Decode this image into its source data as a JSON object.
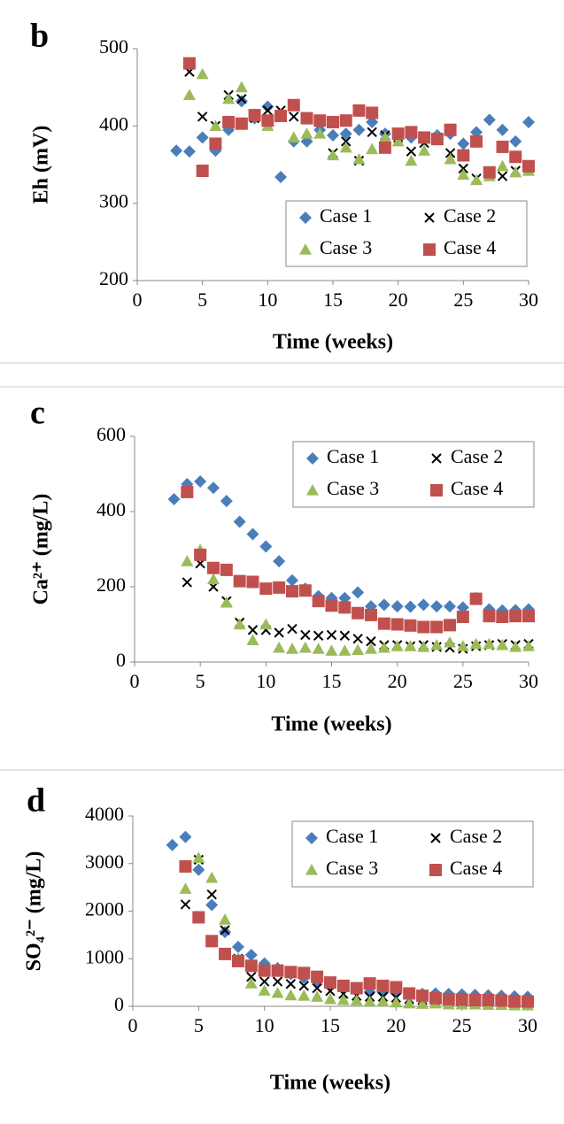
{
  "chart_data": [
    {
      "type": "scatter",
      "label": "b",
      "y_label": "Eh (mV)",
      "x_label": "Time (weeks)",
      "xlim": [
        0,
        30
      ],
      "xticks": [
        0,
        5,
        10,
        15,
        20,
        25,
        30
      ],
      "ylim": [
        200,
        500
      ],
      "yticks": [
        200,
        300,
        400,
        500
      ],
      "grid": false,
      "legend": "lower right",
      "x": [
        3,
        4,
        5,
        6,
        7,
        8,
        9,
        10,
        11,
        12,
        13,
        14,
        15,
        16,
        17,
        18,
        19,
        20,
        21,
        22,
        23,
        24,
        25,
        26,
        27,
        28,
        29,
        30
      ],
      "series": [
        {
          "name": "Case 1",
          "color": "#4a7ebb",
          "marker": "diamond",
          "values": [
            368,
            367,
            385,
            368,
            395,
            432,
            410,
            425,
            334,
            380,
            380,
            395,
            388,
            390,
            395,
            405,
            390,
            385,
            385,
            385,
            388,
            390,
            377,
            392,
            408,
            395,
            380,
            405
          ]
        },
        {
          "name": "Case 2",
          "color": "#000000",
          "marker": "x",
          "values": [
            null,
            470,
            412,
            400,
            440,
            435,
            410,
            420,
            420,
            412,
            410,
            405,
            365,
            380,
            355,
            392,
            388,
            385,
            367,
            378,
            385,
            365,
            345,
            332,
            335,
            335,
            342,
            345
          ]
        },
        {
          "name": "Case 3",
          "color": "#9bbb59",
          "marker": "triangle",
          "values": [
            null,
            440,
            467,
            400,
            435,
            450,
            415,
            400,
            415,
            385,
            390,
            390,
            362,
            372,
            357,
            370,
            385,
            380,
            355,
            368,
            385,
            357,
            337,
            330,
            335,
            348,
            340,
            342
          ]
        },
        {
          "name": "Case 4",
          "color": "#c0504d",
          "marker": "square",
          "values": [
            null,
            481,
            342,
            377,
            405,
            403,
            414,
            407,
            413,
            427,
            410,
            407,
            405,
            407,
            420,
            417,
            372,
            390,
            392,
            385,
            383,
            395,
            362,
            380,
            340,
            373,
            360,
            348
          ]
        }
      ]
    },
    {
      "type": "scatter",
      "label": "c",
      "y_label": "Ca²⁺ (mg/L)",
      "x_label": "Time (weeks)",
      "xlim": [
        0,
        30
      ],
      "xticks": [
        0,
        5,
        10,
        15,
        20,
        25,
        30
      ],
      "ylim": [
        0,
        600
      ],
      "yticks": [
        0,
        200,
        400,
        600
      ],
      "grid": false,
      "legend": "upper right",
      "x": [
        3,
        4,
        5,
        6,
        7,
        8,
        9,
        10,
        11,
        12,
        13,
        14,
        15,
        16,
        17,
        18,
        19,
        20,
        21,
        22,
        23,
        24,
        25,
        26,
        27,
        28,
        29,
        30
      ],
      "series": [
        {
          "name": "Case 1",
          "color": "#4a7ebb",
          "marker": "diamond",
          "values": [
            433,
            473,
            480,
            463,
            428,
            373,
            340,
            307,
            268,
            217,
            195,
            175,
            170,
            170,
            185,
            148,
            152,
            148,
            147,
            152,
            148,
            148,
            145,
            170,
            140,
            137,
            138,
            140
          ]
        },
        {
          "name": "Case 2",
          "color": "#000000",
          "marker": "x",
          "values": [
            null,
            212,
            262,
            200,
            162,
            105,
            85,
            85,
            78,
            88,
            72,
            70,
            72,
            70,
            62,
            55,
            45,
            45,
            42,
            45,
            40,
            38,
            35,
            42,
            45,
            48,
            45,
            48
          ]
        },
        {
          "name": "Case 3",
          "color": "#9bbb59",
          "marker": "triangle",
          "values": [
            null,
            268,
            298,
            220,
            158,
            100,
            58,
            100,
            38,
            35,
            38,
            35,
            30,
            30,
            32,
            35,
            38,
            42,
            42,
            40,
            45,
            52,
            42,
            48,
            48,
            45,
            40,
            42
          ]
        },
        {
          "name": "Case 4",
          "color": "#c0504d",
          "marker": "square",
          "values": [
            null,
            452,
            285,
            250,
            245,
            215,
            213,
            195,
            198,
            188,
            190,
            162,
            150,
            145,
            130,
            125,
            102,
            100,
            97,
            93,
            93,
            98,
            120,
            168,
            122,
            120,
            122,
            122
          ]
        }
      ]
    },
    {
      "type": "scatter",
      "label": "d",
      "y_label": "SO₄²⁻ (mg/L)",
      "x_label": "Time (weeks)",
      "xlim": [
        0,
        30
      ],
      "xticks": [
        0,
        5,
        10,
        15,
        20,
        25,
        30
      ],
      "ylim": [
        0,
        4000
      ],
      "yticks": [
        0,
        1000,
        2000,
        3000,
        4000
      ],
      "grid": false,
      "legend": "upper right",
      "x": [
        3,
        4,
        5,
        6,
        7,
        8,
        9,
        10,
        11,
        12,
        13,
        14,
        15,
        16,
        17,
        18,
        19,
        20,
        21,
        22,
        23,
        24,
        25,
        26,
        27,
        28,
        29,
        30
      ],
      "series": [
        {
          "name": "Case 1",
          "color": "#4a7ebb",
          "marker": "diamond",
          "values": [
            3390,
            3560,
            2870,
            2130,
            1560,
            1250,
            1080,
            900,
            800,
            680,
            600,
            520,
            470,
            400,
            370,
            300,
            290,
            280,
            270,
            260,
            270,
            260,
            250,
            240,
            230,
            220,
            210,
            200
          ]
        },
        {
          "name": "Case 2",
          "color": "#000000",
          "marker": "x",
          "values": [
            null,
            2140,
            3080,
            2350,
            1600,
            1000,
            620,
            520,
            520,
            470,
            430,
            380,
            320,
            260,
            220,
            200,
            200,
            180,
            150,
            130,
            120,
            100,
            80,
            70,
            60,
            50,
            40,
            40
          ]
        },
        {
          "name": "Case 3",
          "color": "#9bbb59",
          "marker": "triangle",
          "values": [
            null,
            2470,
            3120,
            2700,
            1820,
            1000,
            480,
            330,
            280,
            230,
            220,
            200,
            150,
            130,
            120,
            100,
            100,
            80,
            60,
            50,
            60,
            40,
            40,
            40,
            30,
            30,
            20,
            20
          ]
        },
        {
          "name": "Case 4",
          "color": "#c0504d",
          "marker": "square",
          "values": [
            null,
            2940,
            1870,
            1370,
            1100,
            950,
            850,
            750,
            750,
            720,
            700,
            620,
            500,
            430,
            380,
            480,
            430,
            400,
            270,
            220,
            170,
            150,
            140,
            130,
            130,
            120,
            100,
            100
          ]
        }
      ]
    }
  ]
}
